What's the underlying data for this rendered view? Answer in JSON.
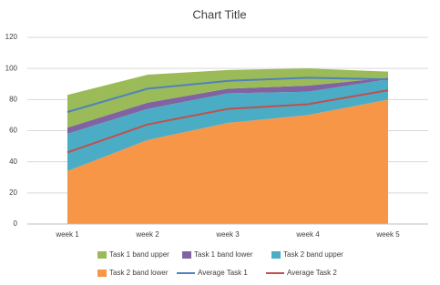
{
  "chart_data": {
    "type": "area",
    "title": "Chart Title",
    "categories": [
      "week 1",
      "week 2",
      "week 3",
      "week 4",
      "week 5"
    ],
    "ylim": [
      0,
      120
    ],
    "yticks": [
      0,
      20,
      40,
      60,
      80,
      100,
      120
    ],
    "grid": true,
    "stacked": true,
    "legend": "bottom",
    "series": [
      {
        "name": "Task 1 band upper",
        "kind": "area",
        "color": "#9bbb59",
        "values": [
          21,
          18,
          12,
          11,
          4
        ]
      },
      {
        "name": "Task 1 band lower",
        "kind": "area",
        "color": "#8064a2",
        "values": [
          4,
          4,
          3,
          4,
          1
        ]
      },
      {
        "name": "Task 2 band upper",
        "kind": "area",
        "color": "#4bacc6",
        "values": [
          24,
          20,
          19,
          15,
          13
        ]
      },
      {
        "name": "Task 2 band lower",
        "kind": "area",
        "color": "#f79646",
        "values": [
          34,
          54,
          65,
          70,
          80
        ]
      },
      {
        "name": "Average Task 1",
        "kind": "line",
        "color": "#4f81bd",
        "values": [
          72,
          87,
          92,
          94,
          93
        ]
      },
      {
        "name": "Average Task 2",
        "kind": "line",
        "color": "#c0504d",
        "values": [
          46,
          64,
          74,
          77,
          86
        ]
      }
    ]
  }
}
